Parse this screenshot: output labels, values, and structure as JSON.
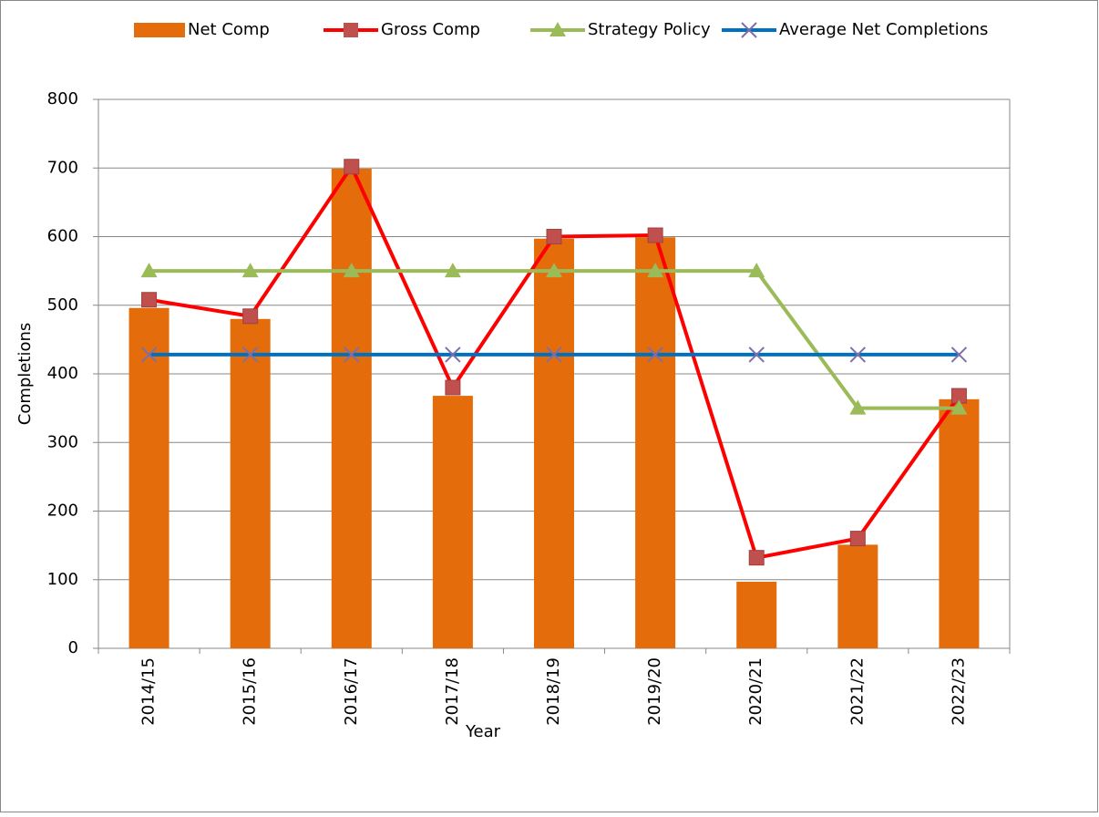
{
  "chart_data": {
    "type": "bar",
    "x_label": "Year",
    "y_label": "Completions",
    "categories": [
      "2014/15",
      "2015/16",
      "2016/17",
      "2017/18",
      "2018/19",
      "2019/20",
      "2020/21",
      "2021/22",
      "2022/23"
    ],
    "series": [
      {
        "name": "Net Comp",
        "type": "bar",
        "color": "#e46c0a",
        "values": [
          496,
          480,
          699,
          368,
          597,
          599,
          97,
          151,
          363
        ]
      },
      {
        "name": "Gross Comp",
        "type": "line",
        "color": "#ff0000",
        "marker": "square",
        "marker_color": "#c0504d",
        "values": [
          508,
          484,
          702,
          380,
          600,
          602,
          132,
          160,
          368
        ]
      },
      {
        "name": "Strategy Policy",
        "type": "line",
        "color": "#9bbb59",
        "marker": "triangle",
        "marker_color": "#9bbb59",
        "values": [
          550,
          550,
          550,
          550,
          550,
          550,
          550,
          350,
          350
        ]
      },
      {
        "name": "Average Net Completions",
        "type": "line",
        "color": "#0070c0",
        "marker": "x",
        "marker_color": "#7f6fa8",
        "values": [
          428,
          428,
          428,
          428,
          428,
          428,
          428,
          428,
          428
        ]
      }
    ],
    "ylim": [
      0,
      800
    ],
    "yticks": [
      0,
      100,
      200,
      300,
      400,
      500,
      600,
      700,
      800
    ],
    "grid": true,
    "legend": "top"
  }
}
